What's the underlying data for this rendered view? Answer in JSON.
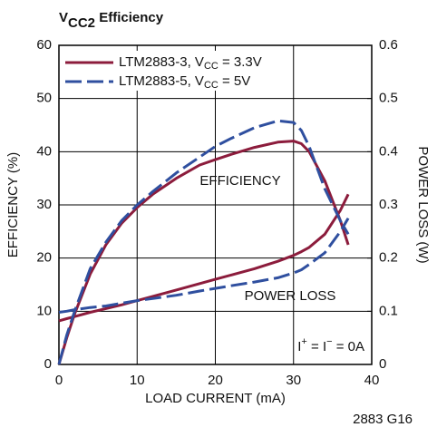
{
  "chart_data": {
    "type": "line",
    "title": [
      "V",
      "CC2",
      " Efficiency"
    ],
    "x_label": "LOAD CURRENT (mA)",
    "y_label": "EFFICIENCY (%)",
    "y2_label": "POWER LOSS (W)",
    "footnote": "2883 G16",
    "annotations": [
      {
        "text": [
          "EFFICIENCY"
        ]
      },
      {
        "text": [
          "POWER LOSS"
        ]
      },
      {
        "text": [
          "I",
          "+",
          " = I",
          "−",
          " = 0A"
        ]
      }
    ],
    "x": [
      0,
      1,
      2,
      4,
      6,
      8,
      10,
      12,
      15,
      18,
      20,
      22,
      25,
      28,
      30,
      31,
      32,
      34,
      36,
      37
    ],
    "series": [
      {
        "name": [
          "LTM2883-3, V",
          "CC",
          " = 3.3V"
        ],
        "color": "#8c1c3c",
        "dashed": false,
        "efficiency": [
          0,
          5,
          9.5,
          17,
          22.5,
          26.5,
          29.5,
          32,
          35,
          37.5,
          38.5,
          39.5,
          40.8,
          41.8,
          42,
          41.5,
          40,
          34.5,
          27,
          22.5
        ],
        "power_loss": [
          0.082,
          0.086,
          0.09,
          0.098,
          0.105,
          0.112,
          0.12,
          0.128,
          0.14,
          0.152,
          0.16,
          0.168,
          0.18,
          0.194,
          0.205,
          0.212,
          0.22,
          0.245,
          0.29,
          0.32
        ]
      },
      {
        "name": [
          "LTM2883-5, V",
          "CC",
          " = 5V"
        ],
        "color": "#2f4f9f",
        "dashed": true,
        "efficiency": [
          0,
          5.5,
          10,
          18,
          23,
          27,
          30,
          32.5,
          36,
          39,
          41,
          42.5,
          44.5,
          45.8,
          45.5,
          44,
          41,
          33,
          27,
          24.5
        ],
        "power_loss": [
          0.098,
          0.1,
          0.103,
          0.107,
          0.11,
          0.115,
          0.12,
          0.124,
          0.13,
          0.138,
          0.143,
          0.148,
          0.155,
          0.163,
          0.172,
          0.178,
          0.188,
          0.21,
          0.25,
          0.275
        ]
      }
    ],
    "xlim": [
      0,
      40
    ],
    "xticks": [
      0,
      10,
      20,
      30,
      40
    ],
    "ylim": [
      0,
      60
    ],
    "yticks": [
      0,
      10,
      20,
      30,
      40,
      50,
      60
    ],
    "y2lim": [
      0,
      0.6
    ],
    "y2ticks": [
      0,
      0.1,
      0.2,
      0.3,
      0.4,
      0.5,
      0.6
    ],
    "grid": true
  }
}
